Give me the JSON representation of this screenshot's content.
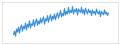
{
  "chart_data": {
    "type": "line",
    "categories": [
      null,
      null,
      null,
      null,
      null,
      null,
      null,
      null,
      null,
      null,
      null,
      null,
      null,
      null,
      null,
      null,
      null,
      null,
      null,
      null,
      null,
      null,
      null,
      null,
      null,
      null,
      null,
      null,
      null,
      null,
      null,
      null,
      null,
      null,
      null,
      null,
      null,
      null,
      null,
      null,
      null,
      null,
      null,
      null,
      null,
      null,
      null,
      null,
      null,
      null,
      null,
      null,
      null,
      null,
      null,
      null,
      null,
      null,
      null,
      null,
      null,
      null,
      null,
      null,
      null,
      null,
      null,
      null,
      null,
      null,
      null,
      null,
      null,
      null,
      null,
      null,
      null,
      null,
      null,
      null,
      null,
      null,
      null,
      null,
      null,
      null,
      null,
      null,
      null,
      null,
      null,
      null,
      null,
      null,
      null,
      null
    ],
    "values": [
      22,
      30,
      18,
      35,
      28,
      40,
      25,
      38,
      45,
      30,
      42,
      36,
      50,
      33,
      47,
      40,
      55,
      38,
      48,
      44,
      58,
      42,
      52,
      60,
      45,
      55,
      48,
      62,
      50,
      58,
      65,
      47,
      60,
      55,
      68,
      52,
      63,
      70,
      55,
      66,
      60,
      72,
      58,
      68,
      75,
      62,
      70,
      80,
      65,
      73,
      68,
      85,
      70,
      78,
      72,
      88,
      74,
      80,
      76,
      90,
      72,
      82,
      78,
      86,
      70,
      84,
      80,
      76,
      88,
      74,
      82,
      70,
      86,
      78,
      72,
      84,
      76,
      80,
      68,
      82,
      74,
      78,
      70,
      84,
      76,
      72,
      80,
      66,
      78,
      74,
      70,
      82,
      72,
      76,
      68,
      74
    ],
    "color": "#3a8fd9",
    "ylim": [
      0,
      100
    ],
    "tick_labels": false
  }
}
